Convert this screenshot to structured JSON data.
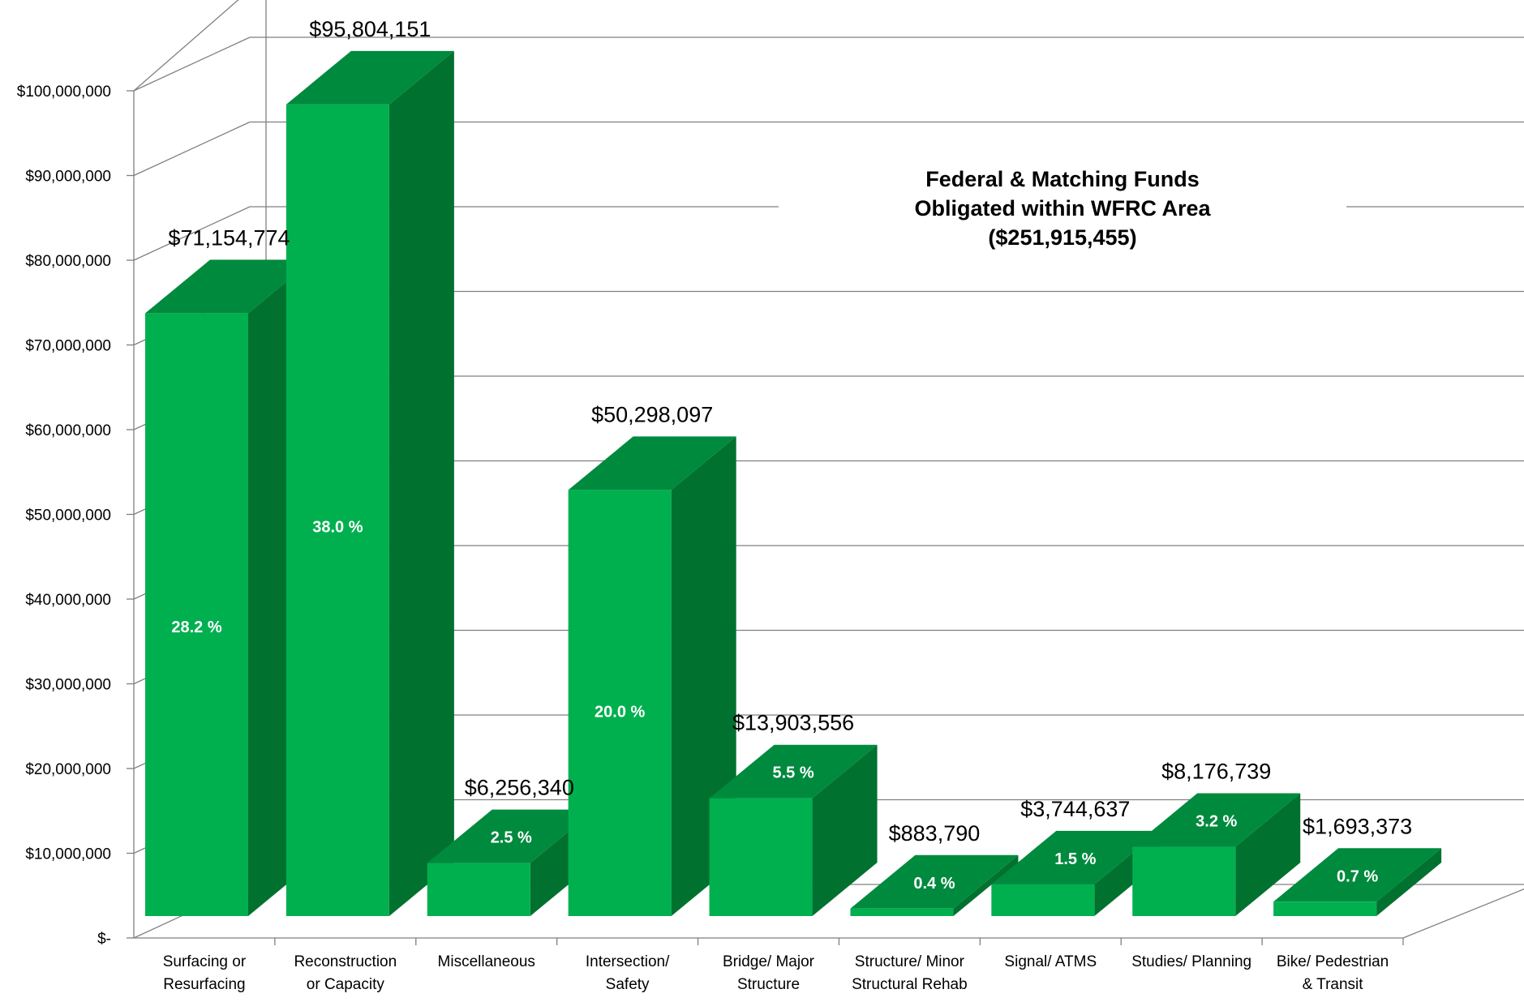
{
  "chart_data": {
    "type": "bar",
    "title": [
      "Federal & Matching Funds",
      "Obligated  within WFRC Area",
      "($251,915,455)"
    ],
    "xlabel": "",
    "ylabel": "",
    "ylim": [
      0,
      100000000
    ],
    "ytick_labels": [
      "$-",
      "$10,000,000",
      "$20,000,000",
      "$30,000,000",
      "$40,000,000",
      "$50,000,000",
      "$60,000,000",
      "$70,000,000",
      "$80,000,000",
      "$90,000,000",
      "$100,000,000"
    ],
    "categories": [
      [
        "Surfacing or",
        "Resurfacing"
      ],
      [
        "Reconstruction",
        "or Capacity"
      ],
      [
        "Miscellaneous"
      ],
      [
        "Intersection/",
        "Safety"
      ],
      [
        "Bridge/ Major",
        "Structure"
      ],
      [
        "Structure/ Minor",
        "Structural Rehab"
      ],
      [
        "Signal/ ATMS"
      ],
      [
        "Studies/ Planning"
      ],
      [
        "Bike/ Pedestrian",
        "& Transit"
      ]
    ],
    "values": [
      71154774,
      95804151,
      6256340,
      50298097,
      13903556,
      883790,
      3744637,
      8176739,
      1693373
    ],
    "value_labels": [
      "$71,154,774",
      "$95,804,151",
      "$6,256,340",
      "$50,298,097",
      "$13,903,556",
      "$883,790",
      "$3,744,637",
      "$8,176,739",
      "$1,693,373"
    ],
    "percent_labels": [
      "28.2 %",
      "38.0 %",
      "2.5 %",
      "20.0 %",
      "5.5 %",
      "0.4 %",
      "1.5 %",
      "3.2 %",
      "0.7 %"
    ],
    "percent_label_position": [
      "front",
      "front",
      "top",
      "front",
      "top",
      "top",
      "top",
      "top",
      "top"
    ],
    "colors": {
      "front": "#00b04f",
      "top": "#008a3e",
      "side": "#00712f",
      "grid": "#808080",
      "axis": "#808080",
      "value_label": "#000000",
      "percent_label": "#ffffff"
    },
    "grid": true,
    "style": "3d-column",
    "legend": "none"
  }
}
